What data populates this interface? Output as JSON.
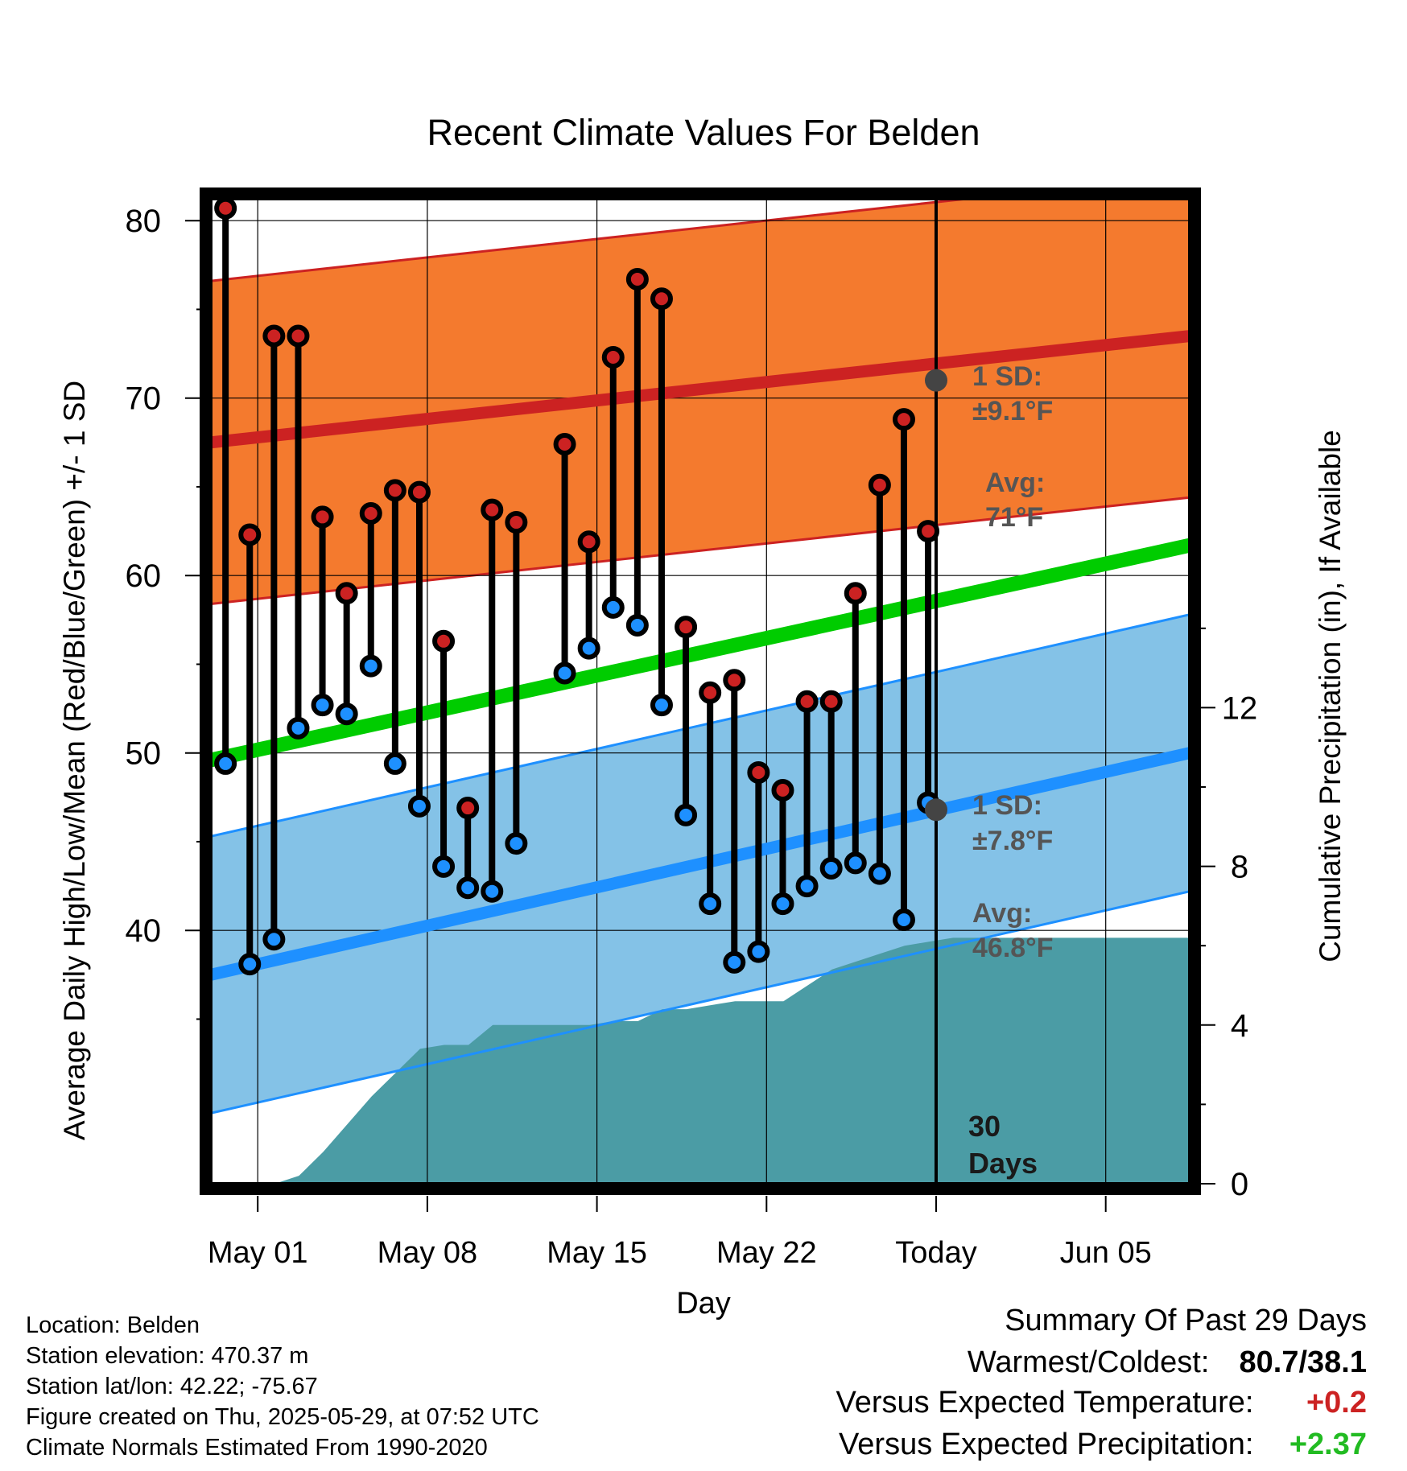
{
  "chart_data": {
    "type": "line",
    "title": "Recent Climate Values For Belden",
    "xlabel": "Day",
    "ylabel": "Average Daily High/Low/Mean (Red/Blue/Green) +/- 1 SD",
    "y2label": "Cumulative Precipitation (in), If Available",
    "ylim": [
      30,
      85
    ],
    "y2lim": [
      0,
      24.5
    ],
    "yticks": [
      40,
      50,
      60,
      70,
      80
    ],
    "y2ticks": [
      0,
      4,
      8,
      12
    ],
    "xticks": [
      "May 01",
      "May 08",
      "May 15",
      "May 22",
      "Today",
      "Jun 05"
    ],
    "x_start_day": "Apr 29",
    "x_days_shown": 41,
    "grid": true,
    "daily_high": [
      80.7,
      62.3,
      73.5,
      73.5,
      63.3,
      59.0,
      63.5,
      64.8,
      64.7,
      56.3,
      46.9,
      63.7,
      63.0,
      null,
      67.4,
      61.9,
      72.3,
      76.7,
      75.6,
      57.1,
      53.4,
      54.1,
      48.9,
      47.9,
      52.9,
      52.9,
      59.0,
      65.1,
      68.8,
      62.5
    ],
    "daily_low": [
      49.4,
      38.1,
      39.5,
      51.4,
      52.7,
      52.2,
      54.9,
      49.4,
      47.0,
      43.6,
      42.4,
      42.2,
      44.9,
      null,
      54.5,
      55.9,
      58.2,
      57.2,
      52.7,
      46.5,
      41.5,
      38.2,
      38.8,
      41.5,
      42.5,
      43.5,
      43.8,
      43.2,
      40.6,
      47.2
    ],
    "normal_high": {
      "start": 67.5,
      "end": 73.5,
      "sd": 9.1,
      "today_avg": 71
    },
    "normal_low": {
      "start": 37.5,
      "end": 50.0,
      "sd": 7.8,
      "today_avg": 46.8
    },
    "normal_mean": {
      "start": 49.6,
      "end": 61.7
    },
    "cumulative_precip": [
      0.0,
      0.0,
      0.0,
      0.0,
      0.2,
      0.8,
      1.5,
      2.2,
      2.8,
      3.4,
      3.5,
      3.5,
      4.0,
      4.0,
      4.0,
      4.0,
      4.0,
      4.1,
      4.1,
      4.4,
      4.4,
      4.5,
      4.6,
      4.6,
      4.6,
      5.0,
      5.4,
      5.6,
      5.8,
      6.0,
      6.1,
      6.2,
      6.2,
      6.2,
      6.2,
      6.2,
      6.2,
      6.2,
      6.2,
      6.2,
      6.2
    ],
    "annotations": {
      "high_sd": "1 SD:",
      "high_sd_val": "±9.1",
      "high_avg": "Avg:",
      "high_avg_val": "71",
      "low_sd": "1 SD:",
      "low_sd_val": "±7.8",
      "low_avg": "Avg:",
      "low_avg_val": "46.8",
      "unit": "°F",
      "period_num": "30",
      "period_word": "Days"
    },
    "colors": {
      "high_band": "#F47A2E",
      "high_line": "#CC2222",
      "low_band": "#84C2E7",
      "low_line": "#1E90FF",
      "mean_line": "#00CC00",
      "precip": "#4B9CA5",
      "high_dot": "#CC2222",
      "low_dot": "#1E90FF",
      "annotation": "#555555",
      "today_dot": "#444444"
    }
  },
  "info": {
    "location": "Location: Belden",
    "elevation": "Station elevation: 470.37 m",
    "latlon": "Station lat/lon: 42.22; -75.67",
    "created": "Figure created on Thu, 2025-05-29, at 07:52 UTC",
    "normals": "Climate Normals Estimated From 1990-2020"
  },
  "summary": {
    "title": "Summary Of Past 29 Days",
    "warm_label": "Warmest/Coldest:",
    "warm_value": "80.7/38.1",
    "temp_label": "Versus Expected Temperature:",
    "temp_value": "+0.2",
    "temp_color": "#CC2222",
    "precip_label": "Versus Expected Precipitation:",
    "precip_value": "+2.37",
    "precip_color": "#22BB22"
  }
}
